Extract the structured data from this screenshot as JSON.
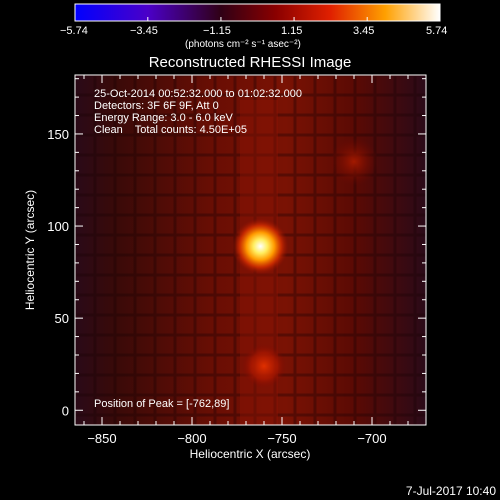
{
  "title": "Reconstructed RHESSI Image",
  "footer_date": "7-Jul-2017 10:40",
  "colorbar": {
    "ticks": [
      "−5.74",
      "−3.45",
      "−1.15",
      "1.15",
      "3.45",
      "5.74"
    ],
    "units": "(photons cm⁻² s⁻¹ asec⁻²)"
  },
  "info_text": {
    "line1": "25-Oct-2014 00:52:32.000 to 01:02:32.000",
    "line2": "Detectors: 3F 6F 9F, Att 0",
    "line3": "Energy Range: 3.0 - 6.0 keV",
    "line4": "Clean    Total counts: 4.50E+05",
    "peak": "Position of Peak = [-762,89]"
  },
  "chart_data": {
    "type": "heatmap",
    "title": "Reconstructed RHESSI Image",
    "xlabel": "Heliocentric X (arcsec)",
    "ylabel": "Heliocentric Y (arcsec)",
    "xlim": [
      -865,
      -670
    ],
    "ylim": [
      -8,
      182
    ],
    "x_ticks": [
      -850,
      -800,
      -750,
      -700
    ],
    "y_ticks": [
      0,
      50,
      100,
      150
    ],
    "colorbar_range": [
      -5.74,
      5.74
    ],
    "colormap": "heat",
    "peak": {
      "x": -762,
      "y": 89,
      "value": 5.74
    },
    "secondary_source": {
      "x": -760,
      "y": 24
    },
    "faint_source": {
      "x": -710,
      "y": 135
    }
  }
}
